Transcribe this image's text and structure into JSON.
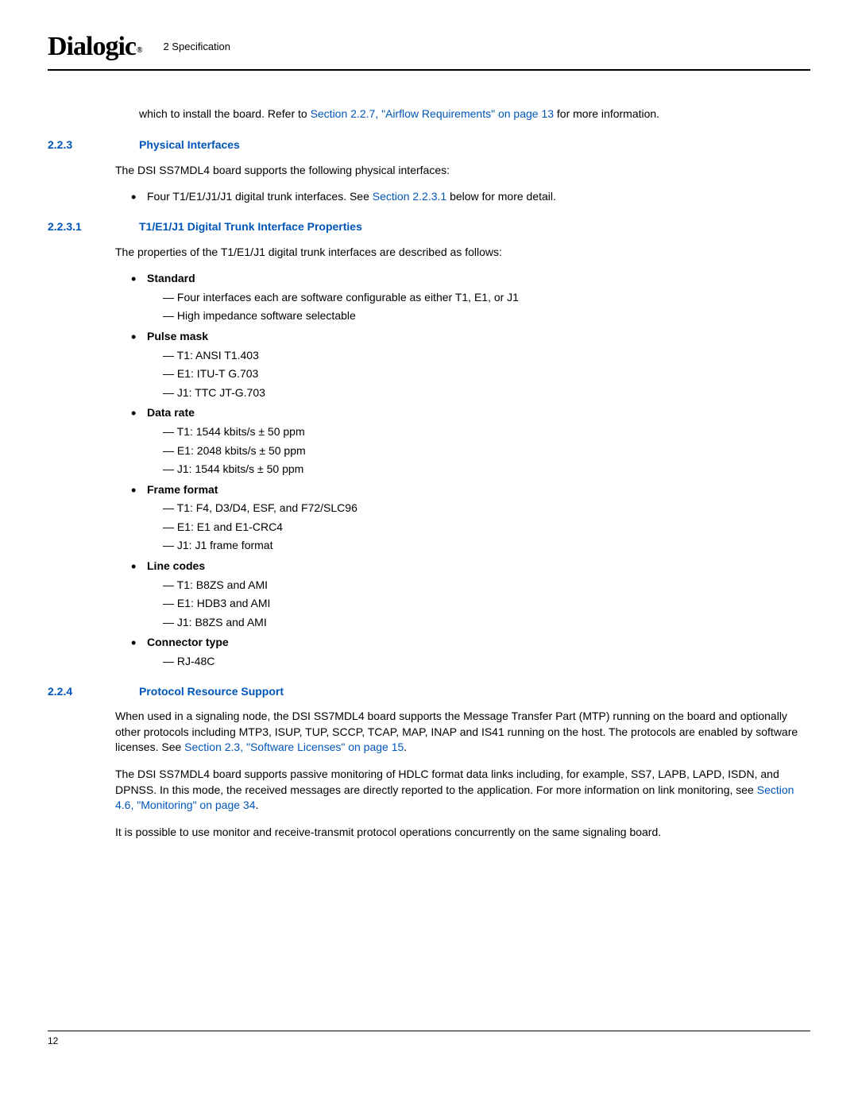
{
  "header": {
    "logo_text": "Dialogic",
    "logo_reg": "®",
    "chapter": "2 Specification"
  },
  "intro": {
    "text_before_link": "which to install the board. Refer to ",
    "link": "Section 2.2.7, \"Airflow Requirements\" on page 13",
    "text_after_link": " for more information."
  },
  "s223": {
    "num": "2.2.3",
    "title": "Physical Interfaces",
    "para": "The DSI SS7MDL4 board supports the following physical interfaces:",
    "bullet_before_link": "Four T1/E1/J1/J1 digital trunk interfaces. See ",
    "bullet_link": "Section 2.2.3.1",
    "bullet_after_link": " below for more detail."
  },
  "s2231": {
    "num": "2.2.3.1",
    "title": "T1/E1/J1 Digital Trunk Interface Properties",
    "para": "The properties of the T1/E1/J1 digital trunk interfaces are described as follows:",
    "items": {
      "standard": {
        "label": "Standard",
        "sub": [
          "Four interfaces each are software configurable as either T1, E1, or J1",
          "High impedance software selectable"
        ]
      },
      "pulse_mask": {
        "label": "Pulse mask",
        "sub": [
          "T1: ANSI T1.403",
          "E1: ITU-T G.703",
          "J1: TTC JT-G.703"
        ]
      },
      "data_rate": {
        "label": "Data rate",
        "sub": [
          "T1: 1544 kbits/s ± 50 ppm",
          "E1: 2048 kbits/s ± 50 ppm",
          "J1: 1544 kbits/s ± 50 ppm"
        ]
      },
      "frame_format": {
        "label": "Frame format",
        "sub": [
          "T1: F4, D3/D4, ESF, and F72/SLC96",
          "E1: E1 and E1-CRC4",
          "J1: J1 frame format"
        ]
      },
      "line_codes": {
        "label": "Line codes",
        "sub": [
          "T1: B8ZS and AMI",
          "E1: HDB3 and AMI",
          "J1: B8ZS and AMI"
        ]
      },
      "connector": {
        "label": "Connector type",
        "sub": [
          "RJ-48C"
        ]
      }
    }
  },
  "s224": {
    "num": "2.2.4",
    "title": "Protocol Resource Support",
    "p1_before": "When used in a signaling node, the DSI SS7MDL4 board supports the Message Transfer Part (MTP) running on the board and optionally other protocols including MTP3, ISUP, TUP, SCCP, TCAP, MAP, INAP and IS41 running on the host. The protocols are enabled by software licenses. See ",
    "p1_link": "Section 2.3, \"Software Licenses\" on page 15",
    "p1_after": ".",
    "p2_before": "The DSI SS7MDL4 board supports passive monitoring of HDLC format data links including, for example, SS7, LAPB, LAPD, ISDN, and DPNSS. In this mode, the received messages are directly reported to the application. For more information on link monitoring, see ",
    "p2_link": "Section 4.6, \"Monitoring\" on page 34",
    "p2_after": ".",
    "p3": "It is possible to use monitor and receive-transmit protocol operations concurrently on the same signaling board."
  },
  "footer": {
    "page_number": "12"
  },
  "colors": {
    "link_blue": "#0056b8",
    "text": "#000000",
    "bg": "#ffffff"
  }
}
